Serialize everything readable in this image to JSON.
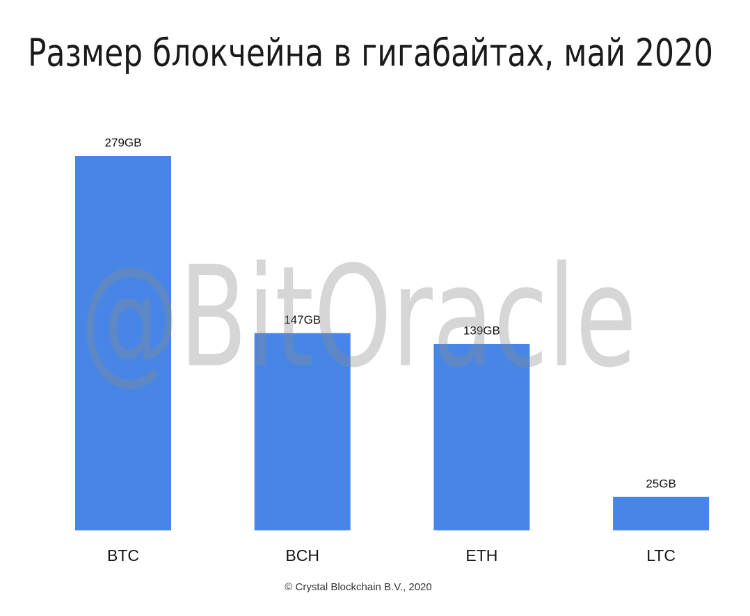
{
  "chart_data": {
    "type": "bar",
    "title": "Размер блокчейна в гигабайтах, май 2020",
    "categories": [
      "BTC",
      "BCH",
      "ETH",
      "LTC"
    ],
    "values": [
      279,
      147,
      139,
      25
    ],
    "value_labels": [
      "279GB",
      "147GB",
      "139GB",
      "25GB"
    ],
    "color": "#4786e6",
    "watermark": "@BitOracle",
    "source": "© Crystal Blockchain B.V., 2020"
  }
}
